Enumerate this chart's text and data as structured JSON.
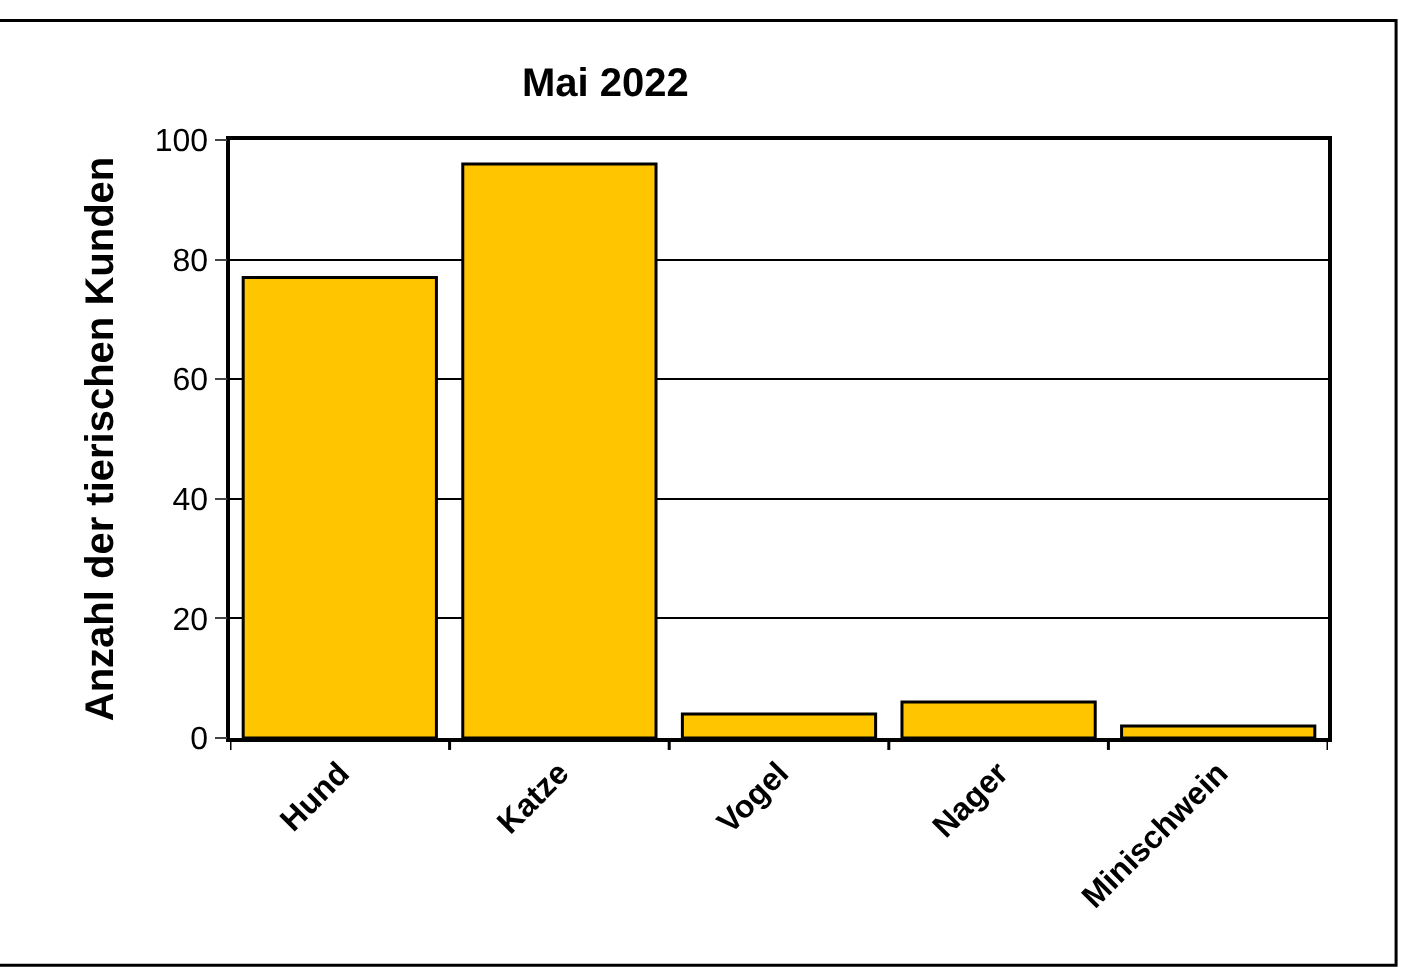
{
  "chart_data": {
    "type": "bar",
    "title": "Mai 2022",
    "ylabel": "Anzahl der tierischen Kunden",
    "categories": [
      "Hund",
      "Katze",
      "Vogel",
      "Nager",
      "Minischwein"
    ],
    "values": [
      77,
      96,
      4,
      6,
      2
    ],
    "color": "#ffc600",
    "ylim": [
      0,
      100
    ],
    "yticks": [
      0,
      20,
      40,
      60,
      80,
      100
    ],
    "grid": "y"
  }
}
